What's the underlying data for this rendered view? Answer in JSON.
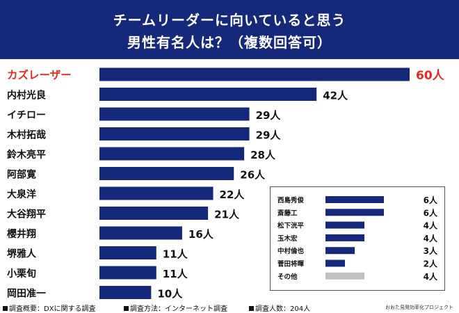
{
  "header": {
    "title_line1": "チームリーダーに向いていると思う",
    "title_line2": "男性有名人は？（複数回答可）"
  },
  "colors": {
    "header_bg": "#16287a",
    "bar": "#16287a",
    "highlight": "#e8281d",
    "other_bar": "#c0c0c0"
  },
  "chart_data": [
    {
      "type": "bar",
      "orientation": "horizontal",
      "unit": "人",
      "categories": [
        "カズレーザー",
        "内村光良",
        "イチロー",
        "木村拓哉",
        "鈴木亮平",
        "阿部寛",
        "大泉洋",
        "大谷翔平",
        "櫻井翔",
        "堺雅人",
        "小栗旬",
        "岡田准一"
      ],
      "values": [
        60,
        42,
        29,
        29,
        28,
        26,
        22,
        21,
        16,
        11,
        11,
        10
      ],
      "labels": [
        "60人",
        "42人",
        "29人",
        "29人",
        "28人",
        "26人",
        "22人",
        "21人",
        "16人",
        "11人",
        "11人",
        "10人"
      ],
      "highlight_index": 0,
      "xlim": [
        0,
        60
      ]
    },
    {
      "type": "bar",
      "orientation": "horizontal",
      "placement": "inset-bottom-right",
      "unit": "人",
      "categories": [
        "西島秀俊",
        "斎藤工",
        "松下洸平",
        "玉木宏",
        "中村倫也",
        "菅田将暉",
        "その他"
      ],
      "values": [
        6,
        6,
        4,
        4,
        3,
        2,
        4
      ],
      "labels": [
        "6人",
        "6人",
        "4人",
        "4人",
        "3人",
        "2人",
        "4人"
      ],
      "grey_index": 6,
      "xlim": [
        0,
        6
      ]
    }
  ],
  "footer": {
    "survey_summary": "調査概要：DXに関する調査",
    "survey_method": "調査方法：インターネット調査",
    "survey_count": "調査人数：204人",
    "credit": "おおた見発効率化プロジェクト"
  }
}
